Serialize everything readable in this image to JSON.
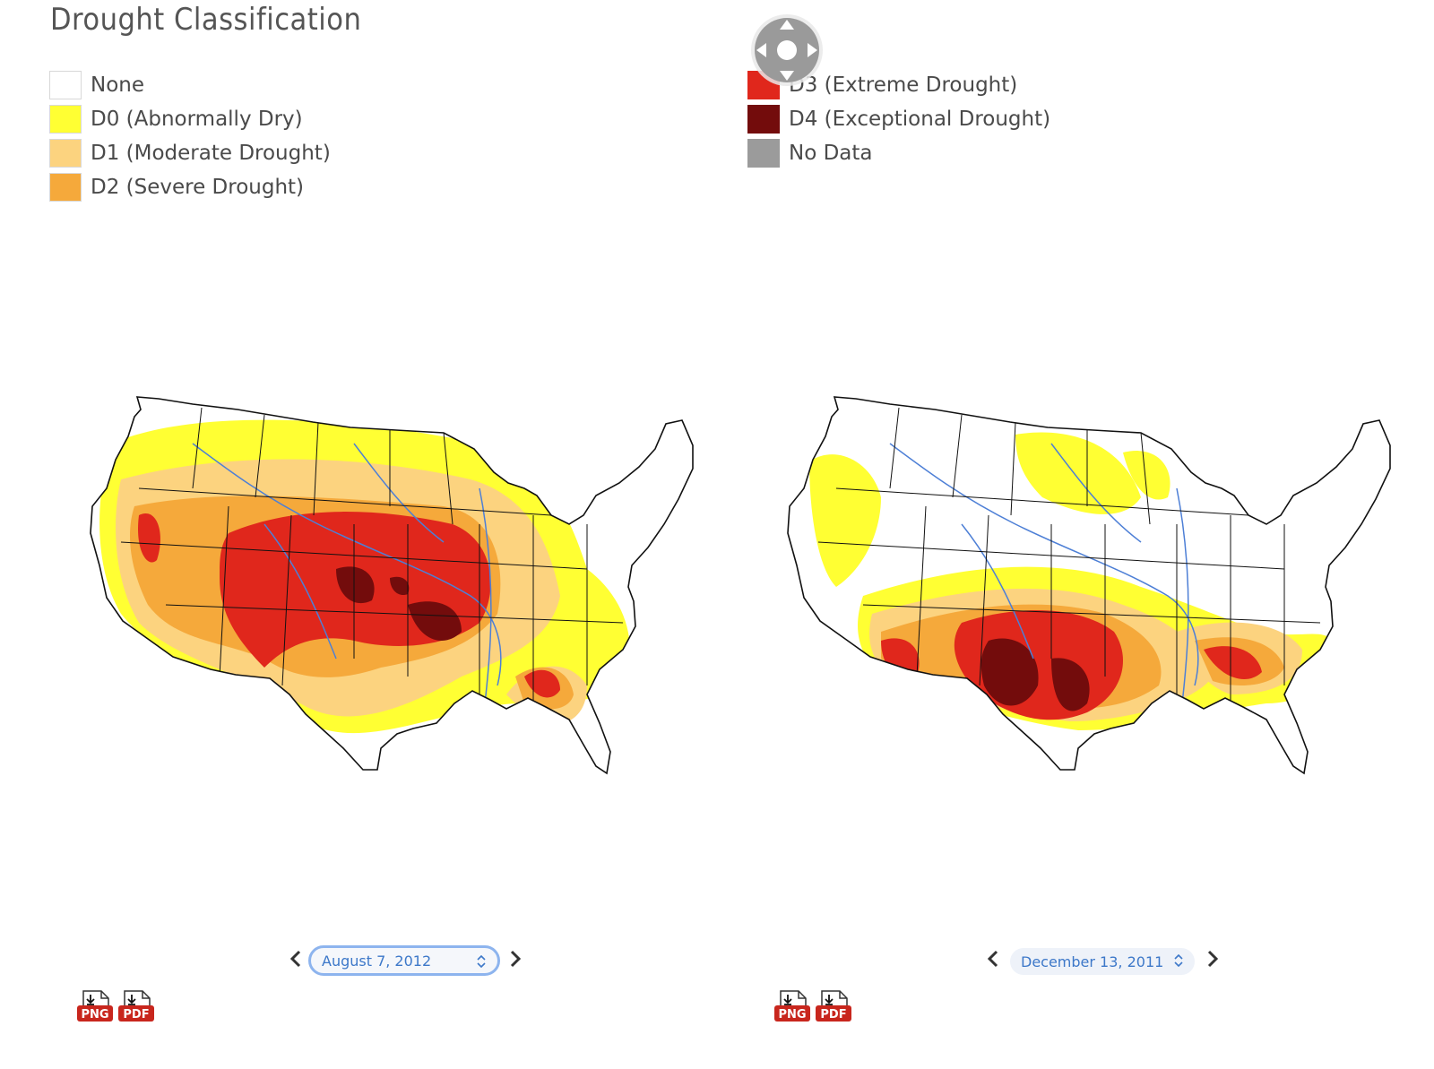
{
  "page": {
    "title": "Drought Classification"
  },
  "legend": {
    "left_column": [
      {
        "label": "None",
        "color": "#ffffff"
      },
      {
        "label": "D0 (Abnormally Dry)",
        "color": "#ffff33"
      },
      {
        "label": "D1 (Moderate Drought)",
        "color": "#fcd37f"
      },
      {
        "label": "D2 (Severe Drought)",
        "color": "#f5a93b"
      }
    ],
    "right_column": [
      {
        "label": "D3 (Extreme Drought)",
        "color": "#e0271c"
      },
      {
        "label": "D4 (Exceptional Drought)",
        "color": "#730c0c"
      },
      {
        "label": "No Data",
        "color": "#9b9b9b"
      }
    ]
  },
  "colors": {
    "river": "#4d7fd6",
    "border": "#111111",
    "link": "#3d78c9"
  },
  "maps": [
    {
      "date": "August 7, 2012",
      "selector_active": true,
      "downloads": [
        "PNG",
        "PDF"
      ]
    },
    {
      "date": "December 13, 2011",
      "selector_active": false,
      "downloads": [
        "PNG",
        "PDF"
      ]
    }
  ]
}
